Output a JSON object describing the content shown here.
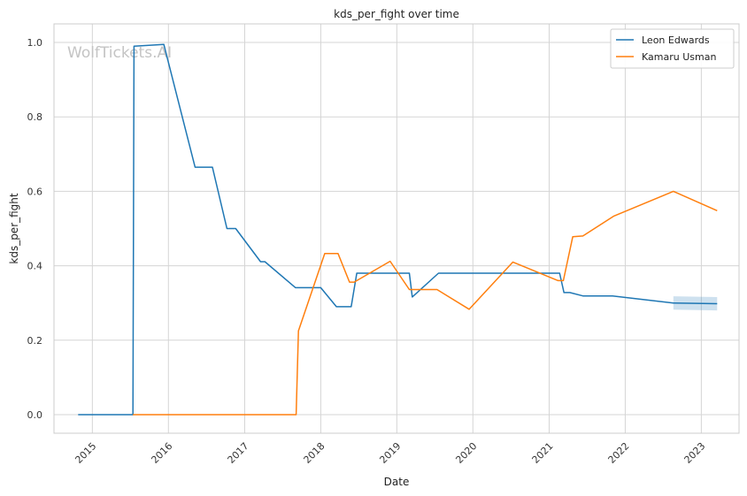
{
  "chart_data": {
    "type": "line",
    "title": "kds_per_fight over time",
    "xlabel": "Date",
    "ylabel": "kds_per_fight",
    "watermark": "WolfTickets.AI",
    "x_type": "date",
    "xlim": [
      "2014-07-01",
      "2023-07-01"
    ],
    "ylim": [
      -0.05,
      1.05
    ],
    "x_ticks": [
      "2015-01-01",
      "2016-01-01",
      "2017-01-01",
      "2018-01-01",
      "2019-01-01",
      "2020-01-01",
      "2021-01-01",
      "2022-01-01",
      "2023-01-01"
    ],
    "x_tick_labels": [
      "2015",
      "2016",
      "2017",
      "2018",
      "2019",
      "2020",
      "2021",
      "2022",
      "2023"
    ],
    "y_ticks": [
      0.0,
      0.2,
      0.4,
      0.6,
      0.8,
      1.0
    ],
    "y_tick_labels": [
      "0.0",
      "0.2",
      "0.4",
      "0.6",
      "0.8",
      "1.0"
    ],
    "grid": true,
    "legend_position": "top-right",
    "series": [
      {
        "name": "Leon Edwards",
        "color": "#1f77b4",
        "points": [
          [
            "2014-10-25",
            0.0
          ],
          [
            "2015-07-15",
            0.0
          ],
          [
            "2015-07-20",
            0.99
          ],
          [
            "2015-12-10",
            0.995
          ],
          [
            "2016-05-08",
            0.665
          ],
          [
            "2016-07-30",
            0.665
          ],
          [
            "2016-10-08",
            0.5
          ],
          [
            "2016-11-19",
            0.5
          ],
          [
            "2017-03-18",
            0.411
          ],
          [
            "2017-04-08",
            0.411
          ],
          [
            "2017-09-02",
            0.341
          ],
          [
            "2018-01-01",
            0.341
          ],
          [
            "2018-03-17",
            0.29
          ],
          [
            "2018-05-27",
            0.29
          ],
          [
            "2018-06-23",
            0.38
          ],
          [
            "2019-03-02",
            0.38
          ],
          [
            "2019-03-16",
            0.316
          ],
          [
            "2019-07-20",
            0.38
          ],
          [
            "2021-02-20",
            0.38
          ],
          [
            "2021-03-13",
            0.328
          ],
          [
            "2021-04-10",
            0.328
          ],
          [
            "2021-06-12",
            0.319
          ],
          [
            "2021-11-01",
            0.319
          ],
          [
            "2022-08-20",
            0.3
          ],
          [
            "2023-03-18",
            0.298
          ]
        ],
        "ci": [
          [
            "2022-08-20",
            0.282,
            0.318
          ],
          [
            "2023-03-18",
            0.28,
            0.316
          ]
        ]
      },
      {
        "name": "Kamaru Usman",
        "color": "#ff7f0e",
        "points": [
          [
            "2015-07-15",
            0.0
          ],
          [
            "2017-09-05",
            0.0
          ],
          [
            "2017-09-16",
            0.225
          ],
          [
            "2018-01-20",
            0.433
          ],
          [
            "2018-03-25",
            0.433
          ],
          [
            "2018-05-19",
            0.356
          ],
          [
            "2018-06-10",
            0.356
          ],
          [
            "2018-11-30",
            0.412
          ],
          [
            "2019-03-02",
            0.336
          ],
          [
            "2019-07-13",
            0.336
          ],
          [
            "2019-12-14",
            0.283
          ],
          [
            "2020-07-11",
            0.41
          ],
          [
            "2021-02-13",
            0.36
          ],
          [
            "2021-03-10",
            0.36
          ],
          [
            "2021-04-24",
            0.478
          ],
          [
            "2021-06-12",
            0.48
          ],
          [
            "2021-11-06",
            0.533
          ],
          [
            "2022-08-20",
            0.6
          ],
          [
            "2023-03-18",
            0.548
          ]
        ]
      }
    ]
  }
}
